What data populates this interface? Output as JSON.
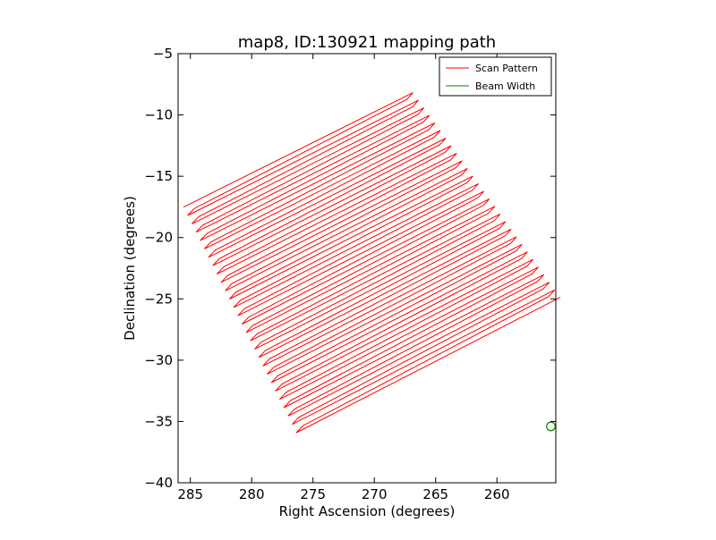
{
  "chart_data": {
    "type": "line",
    "title": "map8, ID:130921 mapping path",
    "xlabel": "Right Ascension (degrees)",
    "ylabel": "Declination (degrees)",
    "xlim": [
      286,
      255.2
    ],
    "ylim": [
      -40,
      -5
    ],
    "x_inverted": true,
    "xticks": [
      285,
      280,
      275,
      270,
      265,
      260
    ],
    "yticks": [
      -5,
      -10,
      -15,
      -20,
      -25,
      -30,
      -35,
      -40
    ],
    "grid": false,
    "legend_position": "top-right",
    "scan_pattern": {
      "name": "Scan Pattern",
      "color": "#ff0000",
      "n_scans": 55,
      "corners": {
        "top_left": [
          285.2,
          -17.4
        ],
        "top_right": [
          267.2,
          -8.3
        ],
        "bottom_right": [
          255.2,
          -25.0
        ],
        "bottom_left": [
          276.0,
          -35.8
        ]
      },
      "zigzag_amplitude_deg": 1.2
    },
    "beam_width": {
      "name": "Beam Width",
      "color": "#008000",
      "center": [
        255.6,
        -35.4
      ],
      "radius_deg": 0.35
    },
    "series": [
      {
        "name": "Scan Pattern",
        "color": "#ff0000"
      },
      {
        "name": "Beam Width",
        "color": "#008000"
      }
    ]
  }
}
